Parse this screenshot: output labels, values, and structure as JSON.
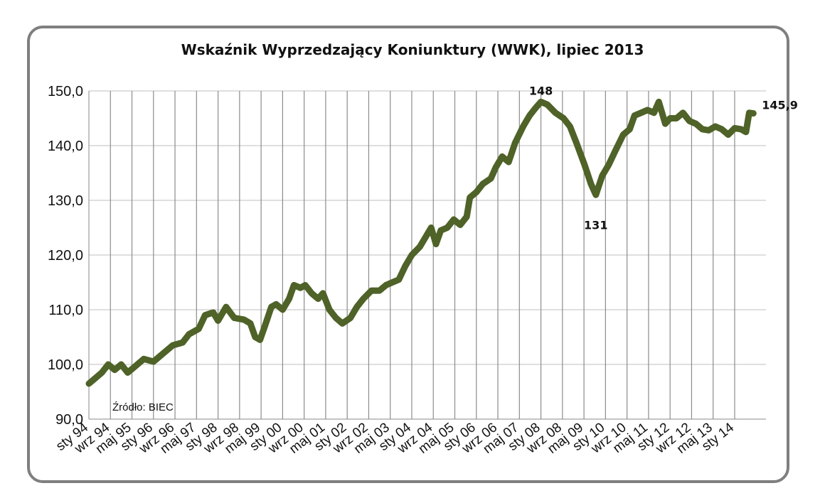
{
  "chart_data": {
    "type": "line",
    "title": "Wskaźnik Wyprzedzający Koniunktury (WWK), lipiec 2013",
    "ylim": [
      90,
      150
    ],
    "yticks": [
      "90,0",
      "100,0",
      "110,0",
      "120,0",
      "130,0",
      "140,0",
      "150,0"
    ],
    "x_tick_labels": [
      "sty 94",
      "wrz 94",
      "maj 95",
      "sty 96",
      "wrz 96",
      "maj 97",
      "sty 98",
      "wrz 98",
      "maj 99",
      "sty 00",
      "wrz 00",
      "maj 01",
      "sty 02",
      "wrz 02",
      "maj 03",
      "sty 04",
      "wrz 04",
      "maj 05",
      "sty 06",
      "wrz 06",
      "maj 07",
      "sty 08",
      "wrz 08",
      "maj 09",
      "sty 10",
      "wrz 10",
      "maj 11",
      "sty 12",
      "wrz 12",
      "maj 13",
      "sty 14"
    ],
    "grid": "vertical lines at each x tick",
    "series": [
      {
        "color": "#4f6228",
        "points": [
          [
            1994.0,
            96.5
          ],
          [
            1994.2,
            97.5
          ],
          [
            1994.4,
            98.5
          ],
          [
            1994.6,
            100.0
          ],
          [
            1994.8,
            99.0
          ],
          [
            1995.0,
            100.0
          ],
          [
            1995.2,
            98.5
          ],
          [
            1995.4,
            99.5
          ],
          [
            1995.7,
            101.0
          ],
          [
            1996.0,
            100.5
          ],
          [
            1996.3,
            102.0
          ],
          [
            1996.6,
            103.5
          ],
          [
            1996.9,
            104.0
          ],
          [
            1997.1,
            105.5
          ],
          [
            1997.4,
            106.5
          ],
          [
            1997.6,
            109.0
          ],
          [
            1997.85,
            109.5
          ],
          [
            1998.0,
            108.0
          ],
          [
            1998.25,
            110.5
          ],
          [
            1998.5,
            108.5
          ],
          [
            1998.8,
            108.2
          ],
          [
            1999.0,
            107.5
          ],
          [
            1999.15,
            105.0
          ],
          [
            1999.3,
            104.5
          ],
          [
            1999.45,
            107.0
          ],
          [
            1999.65,
            110.5
          ],
          [
            1999.8,
            111.0
          ],
          [
            2000.0,
            110.0
          ],
          [
            2000.2,
            112.0
          ],
          [
            2000.35,
            114.5
          ],
          [
            2000.55,
            114.0
          ],
          [
            2000.7,
            114.5
          ],
          [
            2000.9,
            113.0
          ],
          [
            2001.1,
            112.0
          ],
          [
            2001.25,
            113.0
          ],
          [
            2001.45,
            110.0
          ],
          [
            2001.65,
            108.5
          ],
          [
            2001.85,
            107.5
          ],
          [
            2002.1,
            108.5
          ],
          [
            2002.3,
            110.5
          ],
          [
            2002.5,
            112.0
          ],
          [
            2002.75,
            113.5
          ],
          [
            2003.0,
            113.5
          ],
          [
            2003.2,
            114.5
          ],
          [
            2003.4,
            115.0
          ],
          [
            2003.6,
            115.5
          ],
          [
            2003.8,
            118.0
          ],
          [
            2004.0,
            120.0
          ],
          [
            2004.25,
            121.5
          ],
          [
            2004.45,
            123.5
          ],
          [
            2004.6,
            125.0
          ],
          [
            2004.75,
            122.0
          ],
          [
            2004.9,
            124.5
          ],
          [
            2005.1,
            125.0
          ],
          [
            2005.3,
            126.5
          ],
          [
            2005.5,
            125.5
          ],
          [
            2005.7,
            127.0
          ],
          [
            2005.8,
            130.5
          ],
          [
            2006.0,
            131.5
          ],
          [
            2006.2,
            133.0
          ],
          [
            2006.45,
            134.0
          ],
          [
            2006.6,
            136.0
          ],
          [
            2006.8,
            138.0
          ],
          [
            2007.0,
            137.0
          ],
          [
            2007.2,
            140.5
          ],
          [
            2007.45,
            143.5
          ],
          [
            2007.65,
            145.5
          ],
          [
            2007.85,
            147.0
          ],
          [
            2008.0,
            148.0
          ],
          [
            2008.2,
            147.5
          ],
          [
            2008.45,
            146.0
          ],
          [
            2008.7,
            145.0
          ],
          [
            2008.9,
            143.5
          ],
          [
            2009.1,
            140.5
          ],
          [
            2009.35,
            136.5
          ],
          [
            2009.55,
            133.0
          ],
          [
            2009.7,
            131.0
          ],
          [
            2009.9,
            134.5
          ],
          [
            2010.1,
            136.5
          ],
          [
            2010.3,
            139.0
          ],
          [
            2010.55,
            142.0
          ],
          [
            2010.75,
            143.0
          ],
          [
            2010.9,
            145.5
          ],
          [
            2011.1,
            146.0
          ],
          [
            2011.3,
            146.5
          ],
          [
            2011.5,
            146.0
          ],
          [
            2011.65,
            148.0
          ],
          [
            2011.85,
            144.0
          ],
          [
            2012.0,
            145.0
          ],
          [
            2012.2,
            145.0
          ],
          [
            2012.4,
            146.0
          ],
          [
            2012.6,
            144.5
          ],
          [
            2012.8,
            144.0
          ],
          [
            2013.0,
            143.0
          ],
          [
            2013.2,
            142.8
          ],
          [
            2013.4,
            143.5
          ],
          [
            2013.6,
            143.0
          ],
          [
            2013.8,
            142.0
          ],
          [
            2014.0,
            143.2
          ],
          [
            2014.2,
            143.0
          ],
          [
            2014.35,
            142.5
          ],
          [
            2014.45,
            146.0
          ],
          [
            2014.58,
            145.9
          ]
        ]
      }
    ],
    "annotations": [
      {
        "text": "148",
        "x": 2008.0,
        "y": 148.0
      },
      {
        "text": "131",
        "x": 2009.7,
        "y": 131.0
      },
      {
        "text": "145,9",
        "x": 2014.58,
        "y": 145.9
      }
    ],
    "source_note": "Źródło: BIEC"
  }
}
